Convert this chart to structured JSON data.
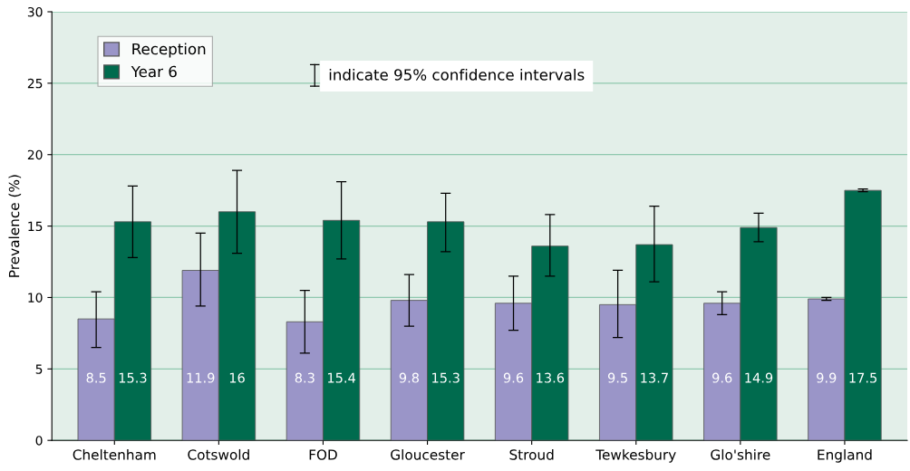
{
  "chart_data": {
    "type": "bar",
    "ylabel": "Prevalence (%)",
    "categories": [
      "Cheltenham",
      "Cotswold",
      "FOD",
      "Gloucester",
      "Stroud",
      "Tewkesbury",
      "Glo'shire",
      "England"
    ],
    "series": [
      {
        "name": "Reception",
        "color": "#9a95c8",
        "values": [
          8.5,
          11.9,
          8.3,
          9.8,
          9.6,
          9.5,
          9.6,
          9.9
        ],
        "errors": [
          [
            6.5,
            10.4
          ],
          [
            9.4,
            14.5
          ],
          [
            6.1,
            10.5
          ],
          [
            8.0,
            11.6
          ],
          [
            7.7,
            11.5
          ],
          [
            7.2,
            11.9
          ],
          [
            8.8,
            10.4
          ],
          [
            9.8,
            10.0
          ]
        ]
      },
      {
        "name": "Year 6",
        "color": "#006b4e",
        "values": [
          15.3,
          16,
          15.4,
          15.3,
          13.6,
          13.7,
          14.9,
          17.5
        ],
        "errors": [
          [
            12.8,
            17.8
          ],
          [
            13.1,
            18.9
          ],
          [
            12.7,
            18.1
          ],
          [
            13.2,
            17.3
          ],
          [
            11.5,
            15.8
          ],
          [
            11.1,
            16.4
          ],
          [
            13.9,
            15.9
          ],
          [
            17.4,
            17.6
          ]
        ]
      }
    ],
    "ylim": [
      0,
      30
    ],
    "yticks": [
      0,
      5,
      10,
      15,
      20,
      25,
      30
    ],
    "grid": "y",
    "legend": "top left",
    "data_labels": true,
    "annotations": [
      "indicate 95% confidence intervals"
    ]
  }
}
